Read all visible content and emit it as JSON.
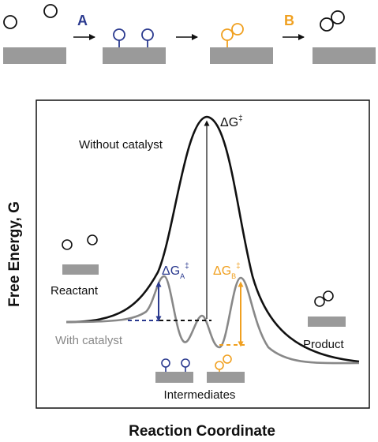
{
  "top_scheme": {
    "step_a_label": "A",
    "step_b_label": "B",
    "colors": {
      "step_a": "#2b3a8f",
      "step_b": "#f0a020",
      "surface": "#9a9a9a",
      "molecule": "#111111"
    }
  },
  "chart": {
    "y_axis_label": "Free Energy, G",
    "x_axis_label": "Reaction Coordinate",
    "uncatalyzed_label": "Without catalyst",
    "catalyzed_label": "With catalyst",
    "delta_g_main": {
      "symbol": "ΔG",
      "sup": "‡"
    },
    "delta_g_a": {
      "symbol": "ΔG",
      "sub": "A",
      "sup": "‡"
    },
    "delta_g_b": {
      "symbol": "ΔG",
      "sub": "B",
      "sup": "‡"
    },
    "reactant_label": "Reactant",
    "intermediates_label": "Intermediates",
    "product_label": "Product",
    "colors": {
      "uncatalyzed": "#111111",
      "catalyzed": "#888888",
      "step_a": "#2b3a8f",
      "step_b": "#f0a020"
    }
  }
}
